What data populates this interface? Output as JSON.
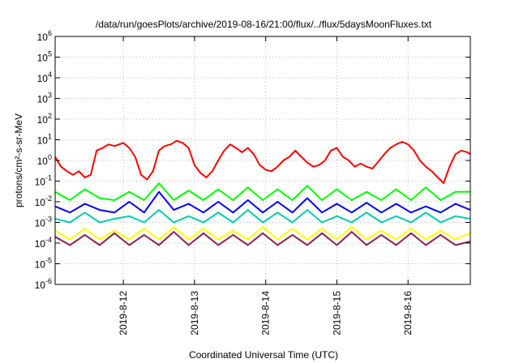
{
  "chart_data": {
    "type": "line",
    "title": "/data/run/goesPlots/archive/2019-08-16/21:00/flux/../flux/5daysMoonFluxes.txt",
    "xlabel": "Coordinated Universal Time (UTC)",
    "ylabel": "protons/cm²-s-sr-MeV",
    "yscale": "log",
    "ylim": [
      1e-06,
      1000000.0
    ],
    "xlim": [
      "2019-08-11 01:00",
      "2019-08-16 21:00"
    ],
    "grid": true,
    "x_ticks": [
      {
        "label": "2019-8-12",
        "value": "2019-08-12 00:00"
      },
      {
        "label": "2019-8-13",
        "value": "2019-08-13 00:00"
      },
      {
        "label": "2019-8-14",
        "value": "2019-08-14 00:00"
      },
      {
        "label": "2019-8-15",
        "value": "2019-08-15 00:00"
      },
      {
        "label": "2019-8-16",
        "value": "2019-08-16 00:00"
      }
    ],
    "y_ticks": [
      {
        "label": "10",
        "exp": "-6",
        "value": 1e-06
      },
      {
        "label": "10",
        "exp": "-5",
        "value": 1e-05
      },
      {
        "label": "10",
        "exp": "-4",
        "value": 0.0001
      },
      {
        "label": "10",
        "exp": "-3",
        "value": 0.001
      },
      {
        "label": "10",
        "exp": "-2",
        "value": 0.01
      },
      {
        "label": "10",
        "exp": "-1",
        "value": 0.1
      },
      {
        "label": "10",
        "exp": "0",
        "value": 1
      },
      {
        "label": "10",
        "exp": "1",
        "value": 10
      },
      {
        "label": "10",
        "exp": "2",
        "value": 100
      },
      {
        "label": "10",
        "exp": "3",
        "value": 1000
      },
      {
        "label": "10",
        "exp": "4",
        "value": 10000
      },
      {
        "label": "10",
        "exp": "5",
        "value": 100000
      },
      {
        "label": "10",
        "exp": "6",
        "value": 1000000
      }
    ],
    "series": [
      {
        "color": "#ff0000",
        "x": [
          "2019-08-11 01:00",
          "2019-08-11 03:00",
          "2019-08-11 05:00",
          "2019-08-11 07:00",
          "2019-08-11 09:00",
          "2019-08-11 11:00",
          "2019-08-11 13:00",
          "2019-08-11 15:00",
          "2019-08-11 17:00",
          "2019-08-11 19:00",
          "2019-08-11 21:00",
          "2019-08-12 00:00",
          "2019-08-12 02:00",
          "2019-08-12 04:00",
          "2019-08-12 06:00",
          "2019-08-12 08:00",
          "2019-08-12 10:00",
          "2019-08-12 12:00",
          "2019-08-12 14:00",
          "2019-08-12 16:00",
          "2019-08-12 18:00",
          "2019-08-12 20:00",
          "2019-08-12 22:00",
          "2019-08-13 00:00",
          "2019-08-13 02:00",
          "2019-08-13 04:00",
          "2019-08-13 06:00",
          "2019-08-13 08:00",
          "2019-08-13 10:00",
          "2019-08-13 12:00",
          "2019-08-13 14:00",
          "2019-08-13 16:00",
          "2019-08-13 18:00",
          "2019-08-13 20:00",
          "2019-08-13 22:00",
          "2019-08-14 00:00",
          "2019-08-14 02:00",
          "2019-08-14 04:00",
          "2019-08-14 06:00",
          "2019-08-14 08:00",
          "2019-08-14 10:00",
          "2019-08-14 12:00",
          "2019-08-14 14:00",
          "2019-08-14 16:00",
          "2019-08-14 18:00",
          "2019-08-14 20:00",
          "2019-08-14 22:00",
          "2019-08-15 00:00",
          "2019-08-15 02:00",
          "2019-08-15 04:00",
          "2019-08-15 06:00",
          "2019-08-15 08:00",
          "2019-08-15 10:00",
          "2019-08-15 12:00",
          "2019-08-15 14:00",
          "2019-08-15 16:00",
          "2019-08-15 18:00",
          "2019-08-15 20:00",
          "2019-08-15 22:00",
          "2019-08-16 00:00",
          "2019-08-16 02:00",
          "2019-08-16 04:00",
          "2019-08-16 06:00",
          "2019-08-16 08:00",
          "2019-08-16 10:00",
          "2019-08-16 12:00",
          "2019-08-16 14:00",
          "2019-08-16 16:00",
          "2019-08-16 18:00",
          "2019-08-16 20:00",
          "2019-08-16 21:00"
        ],
        "values": [
          1.5,
          0.5,
          0.3,
          0.2,
          0.3,
          0.15,
          0.2,
          3,
          4,
          6,
          5,
          7,
          4,
          1.5,
          0.2,
          0.12,
          0.3,
          3,
          5,
          6,
          9,
          7,
          4,
          0.6,
          0.25,
          0.15,
          0.3,
          1,
          3,
          6,
          4,
          2.5,
          4,
          2,
          0.6,
          0.35,
          0.3,
          0.5,
          1,
          1.5,
          3,
          1.5,
          0.8,
          0.5,
          0.6,
          1,
          3,
          4,
          1.5,
          1,
          0.5,
          0.7,
          0.5,
          0.4,
          0.9,
          2,
          4,
          6,
          8,
          6,
          3,
          1,
          0.5,
          0.3,
          0.15,
          0.08,
          0.5,
          2,
          3,
          2.5,
          2
        ]
      },
      {
        "color": "#00ff00",
        "x": [
          "2019-08-11 01:00",
          "2019-08-11 06:00",
          "2019-08-11 11:00",
          "2019-08-11 16:00",
          "2019-08-11 21:00",
          "2019-08-12 02:00",
          "2019-08-12 07:00",
          "2019-08-12 12:00",
          "2019-08-12 17:00",
          "2019-08-12 22:00",
          "2019-08-13 03:00",
          "2019-08-13 08:00",
          "2019-08-13 13:00",
          "2019-08-13 18:00",
          "2019-08-13 23:00",
          "2019-08-14 04:00",
          "2019-08-14 09:00",
          "2019-08-14 14:00",
          "2019-08-14 19:00",
          "2019-08-15 00:00",
          "2019-08-15 05:00",
          "2019-08-15 10:00",
          "2019-08-15 15:00",
          "2019-08-15 20:00",
          "2019-08-16 01:00",
          "2019-08-16 06:00",
          "2019-08-16 11:00",
          "2019-08-16 16:00",
          "2019-08-16 21:00"
        ],
        "values": [
          0.03,
          0.012,
          0.04,
          0.015,
          0.012,
          0.03,
          0.012,
          0.08,
          0.012,
          0.035,
          0.012,
          0.04,
          0.012,
          0.05,
          0.012,
          0.04,
          0.012,
          0.06,
          0.012,
          0.04,
          0.012,
          0.03,
          0.012,
          0.04,
          0.012,
          0.05,
          0.012,
          0.03,
          0.03
        ]
      },
      {
        "color": "#0000ff",
        "x": [
          "2019-08-11 01:00",
          "2019-08-11 06:00",
          "2019-08-11 11:00",
          "2019-08-11 16:00",
          "2019-08-11 21:00",
          "2019-08-12 02:00",
          "2019-08-12 07:00",
          "2019-08-12 12:00",
          "2019-08-12 17:00",
          "2019-08-12 22:00",
          "2019-08-13 03:00",
          "2019-08-13 08:00",
          "2019-08-13 13:00",
          "2019-08-13 18:00",
          "2019-08-13 23:00",
          "2019-08-14 04:00",
          "2019-08-14 09:00",
          "2019-08-14 14:00",
          "2019-08-14 19:00",
          "2019-08-15 00:00",
          "2019-08-15 05:00",
          "2019-08-15 10:00",
          "2019-08-15 15:00",
          "2019-08-15 20:00",
          "2019-08-16 01:00",
          "2019-08-16 06:00",
          "2019-08-16 11:00",
          "2019-08-16 16:00",
          "2019-08-16 21:00"
        ],
        "values": [
          0.006,
          0.003,
          0.008,
          0.004,
          0.003,
          0.01,
          0.003,
          0.03,
          0.004,
          0.008,
          0.003,
          0.01,
          0.003,
          0.012,
          0.003,
          0.01,
          0.003,
          0.015,
          0.003,
          0.008,
          0.003,
          0.009,
          0.003,
          0.008,
          0.003,
          0.006,
          0.003,
          0.008,
          0.004
        ]
      },
      {
        "color": "#00ccaa",
        "x": [
          "2019-08-11 01:00",
          "2019-08-11 06:00",
          "2019-08-11 11:00",
          "2019-08-11 16:00",
          "2019-08-11 21:00",
          "2019-08-12 02:00",
          "2019-08-12 07:00",
          "2019-08-12 12:00",
          "2019-08-12 17:00",
          "2019-08-12 22:00",
          "2019-08-13 03:00",
          "2019-08-13 08:00",
          "2019-08-13 13:00",
          "2019-08-13 18:00",
          "2019-08-13 23:00",
          "2019-08-14 04:00",
          "2019-08-14 09:00",
          "2019-08-14 14:00",
          "2019-08-14 19:00",
          "2019-08-15 00:00",
          "2019-08-15 05:00",
          "2019-08-15 10:00",
          "2019-08-15 15:00",
          "2019-08-15 20:00",
          "2019-08-16 01:00",
          "2019-08-16 06:00",
          "2019-08-16 11:00",
          "2019-08-16 16:00",
          "2019-08-16 21:00"
        ],
        "values": [
          0.0015,
          0.001,
          0.003,
          0.001,
          0.0015,
          0.002,
          0.001,
          0.004,
          0.001,
          0.002,
          0.001,
          0.003,
          0.001,
          0.004,
          0.001,
          0.003,
          0.001,
          0.004,
          0.001,
          0.002,
          0.001,
          0.003,
          0.001,
          0.002,
          0.001,
          0.003,
          0.001,
          0.002,
          0.0015
        ]
      },
      {
        "color": "#ffff00",
        "x": [
          "2019-08-11 01:00",
          "2019-08-11 06:00",
          "2019-08-11 11:00",
          "2019-08-11 16:00",
          "2019-08-11 21:00",
          "2019-08-12 02:00",
          "2019-08-12 07:00",
          "2019-08-12 12:00",
          "2019-08-12 17:00",
          "2019-08-12 22:00",
          "2019-08-13 03:00",
          "2019-08-13 08:00",
          "2019-08-13 13:00",
          "2019-08-13 18:00",
          "2019-08-13 23:00",
          "2019-08-14 04:00",
          "2019-08-14 09:00",
          "2019-08-14 14:00",
          "2019-08-14 19:00",
          "2019-08-15 00:00",
          "2019-08-15 05:00",
          "2019-08-15 10:00",
          "2019-08-15 15:00",
          "2019-08-15 20:00",
          "2019-08-16 01:00",
          "2019-08-16 06:00",
          "2019-08-16 11:00",
          "2019-08-16 16:00",
          "2019-08-16 21:00"
        ],
        "values": [
          0.0004,
          0.00015,
          0.0005,
          0.00015,
          0.0004,
          0.00015,
          0.0005,
          0.00015,
          0.0006,
          0.00015,
          0.0005,
          0.00015,
          0.0004,
          0.00015,
          0.0006,
          0.00015,
          0.0005,
          0.00015,
          0.0005,
          0.00015,
          0.0006,
          0.00015,
          0.0004,
          0.00015,
          0.0005,
          0.00015,
          0.0004,
          0.00015,
          0.0003
        ]
      },
      {
        "color": "#8b2252",
        "x": [
          "2019-08-11 01:00",
          "2019-08-11 06:00",
          "2019-08-11 11:00",
          "2019-08-11 16:00",
          "2019-08-11 21:00",
          "2019-08-12 02:00",
          "2019-08-12 07:00",
          "2019-08-12 12:00",
          "2019-08-12 17:00",
          "2019-08-12 22:00",
          "2019-08-13 03:00",
          "2019-08-13 08:00",
          "2019-08-13 13:00",
          "2019-08-13 18:00",
          "2019-08-13 23:00",
          "2019-08-14 04:00",
          "2019-08-14 09:00",
          "2019-08-14 14:00",
          "2019-08-14 19:00",
          "2019-08-15 00:00",
          "2019-08-15 05:00",
          "2019-08-15 10:00",
          "2019-08-15 15:00",
          "2019-08-15 20:00",
          "2019-08-16 01:00",
          "2019-08-16 06:00",
          "2019-08-16 11:00",
          "2019-08-16 16:00",
          "2019-08-16 21:00"
        ],
        "values": [
          0.0002,
          8e-05,
          0.00025,
          8e-05,
          0.0003,
          8e-05,
          0.00025,
          8e-05,
          0.00035,
          8e-05,
          0.0003,
          8e-05,
          0.00025,
          8e-05,
          0.0003,
          8e-05,
          0.00025,
          8e-05,
          0.0003,
          8e-05,
          0.00035,
          8e-05,
          0.00025,
          8e-05,
          0.0003,
          8e-05,
          0.00025,
          8e-05,
          0.00012
        ]
      }
    ]
  }
}
